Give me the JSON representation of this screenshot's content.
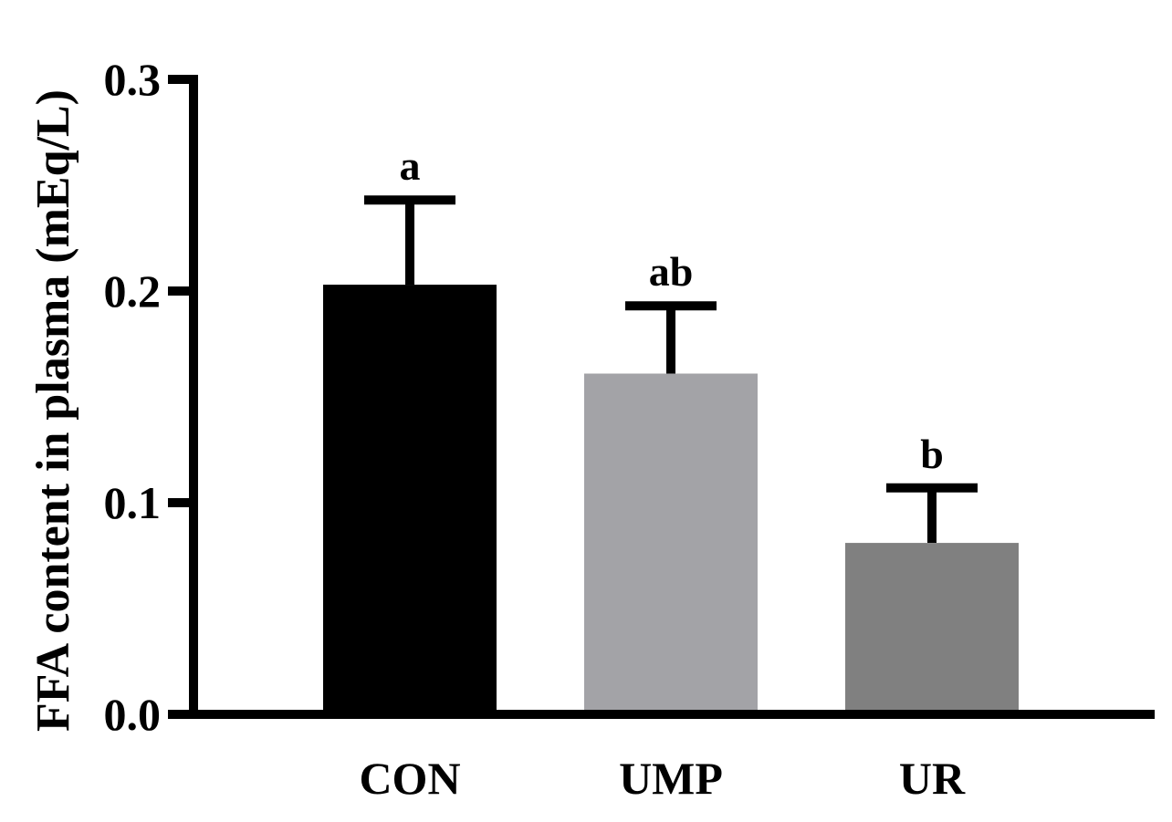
{
  "chart_data": {
    "type": "bar",
    "title": "",
    "xlabel": "",
    "ylabel": "FFA content in plasma (mEq/L)",
    "categories": [
      "CON",
      "UMP",
      "UR"
    ],
    "values": [
      0.203,
      0.161,
      0.081
    ],
    "error_bars": [
      0.04,
      0.032,
      0.026
    ],
    "significance_labels": [
      "a",
      "ab",
      "b"
    ],
    "bar_colors": [
      "#000000",
      "#a3a3a7",
      "#808080"
    ],
    "ylim": [
      0.0,
      0.3
    ],
    "yticks": [
      0.0,
      0.1,
      0.2,
      0.3
    ],
    "ytick_labels": [
      "0.0",
      "0.1",
      "0.2",
      "0.3"
    ],
    "grid": false,
    "legend": "none"
  }
}
